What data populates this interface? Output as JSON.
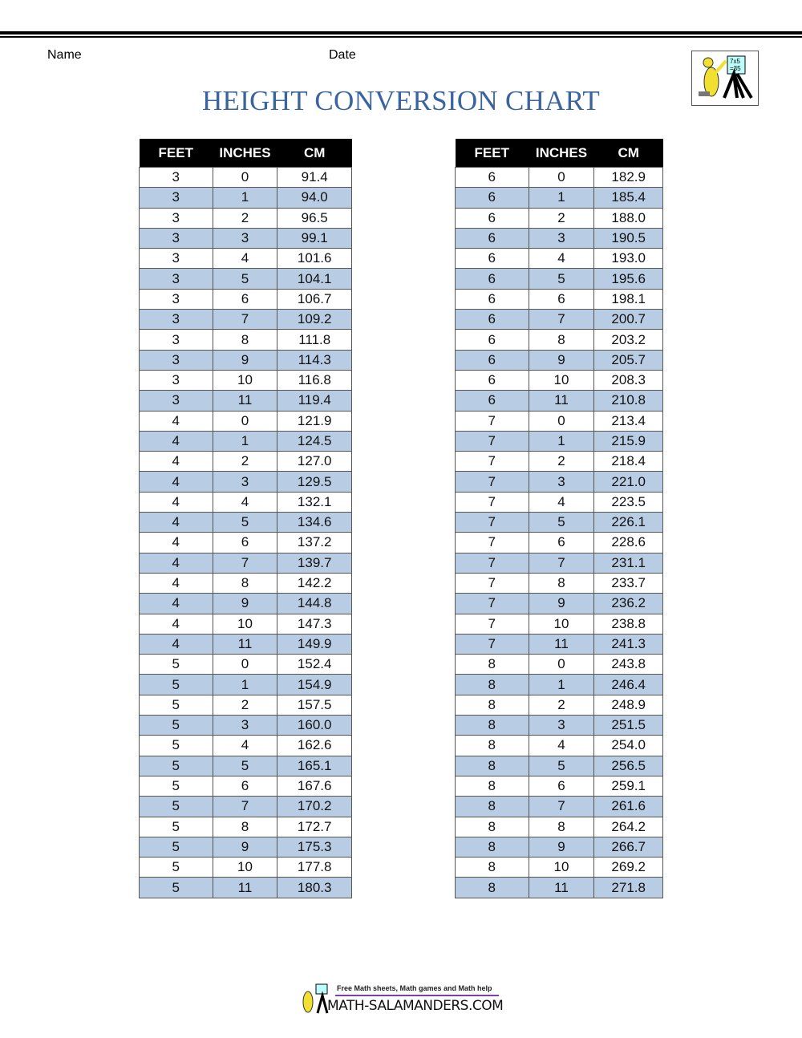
{
  "header": {
    "name_label": "Name",
    "date_label": "Date",
    "title": "HEIGHT CONVERSION CHART"
  },
  "columns": [
    "FEET",
    "INCHES",
    "CM"
  ],
  "tables": [
    {
      "rows": [
        [
          "3",
          "0",
          "91.4"
        ],
        [
          "3",
          "1",
          "94.0"
        ],
        [
          "3",
          "2",
          "96.5"
        ],
        [
          "3",
          "3",
          "99.1"
        ],
        [
          "3",
          "4",
          "101.6"
        ],
        [
          "3",
          "5",
          "104.1"
        ],
        [
          "3",
          "6",
          "106.7"
        ],
        [
          "3",
          "7",
          "109.2"
        ],
        [
          "3",
          "8",
          "111.8"
        ],
        [
          "3",
          "9",
          "114.3"
        ],
        [
          "3",
          "10",
          "116.8"
        ],
        [
          "3",
          "11",
          "119.4"
        ],
        [
          "4",
          "0",
          "121.9"
        ],
        [
          "4",
          "1",
          "124.5"
        ],
        [
          "4",
          "2",
          "127.0"
        ],
        [
          "4",
          "3",
          "129.5"
        ],
        [
          "4",
          "4",
          "132.1"
        ],
        [
          "4",
          "5",
          "134.6"
        ],
        [
          "4",
          "6",
          "137.2"
        ],
        [
          "4",
          "7",
          "139.7"
        ],
        [
          "4",
          "8",
          "142.2"
        ],
        [
          "4",
          "9",
          "144.8"
        ],
        [
          "4",
          "10",
          "147.3"
        ],
        [
          "4",
          "11",
          "149.9"
        ],
        [
          "5",
          "0",
          "152.4"
        ],
        [
          "5",
          "1",
          "154.9"
        ],
        [
          "5",
          "2",
          "157.5"
        ],
        [
          "5",
          "3",
          "160.0"
        ],
        [
          "5",
          "4",
          "162.6"
        ],
        [
          "5",
          "5",
          "165.1"
        ],
        [
          "5",
          "6",
          "167.6"
        ],
        [
          "5",
          "7",
          "170.2"
        ],
        [
          "5",
          "8",
          "172.7"
        ],
        [
          "5",
          "9",
          "175.3"
        ],
        [
          "5",
          "10",
          "177.8"
        ],
        [
          "5",
          "11",
          "180.3"
        ]
      ]
    },
    {
      "rows": [
        [
          "6",
          "0",
          "182.9"
        ],
        [
          "6",
          "1",
          "185.4"
        ],
        [
          "6",
          "2",
          "188.0"
        ],
        [
          "6",
          "3",
          "190.5"
        ],
        [
          "6",
          "4",
          "193.0"
        ],
        [
          "6",
          "5",
          "195.6"
        ],
        [
          "6",
          "6",
          "198.1"
        ],
        [
          "6",
          "7",
          "200.7"
        ],
        [
          "6",
          "8",
          "203.2"
        ],
        [
          "6",
          "9",
          "205.7"
        ],
        [
          "6",
          "10",
          "208.3"
        ],
        [
          "6",
          "11",
          "210.8"
        ],
        [
          "7",
          "0",
          "213.4"
        ],
        [
          "7",
          "1",
          "215.9"
        ],
        [
          "7",
          "2",
          "218.4"
        ],
        [
          "7",
          "3",
          "221.0"
        ],
        [
          "7",
          "4",
          "223.5"
        ],
        [
          "7",
          "5",
          "226.1"
        ],
        [
          "7",
          "6",
          "228.6"
        ],
        [
          "7",
          "7",
          "231.1"
        ],
        [
          "7",
          "8",
          "233.7"
        ],
        [
          "7",
          "9",
          "236.2"
        ],
        [
          "7",
          "10",
          "238.8"
        ],
        [
          "7",
          "11",
          "241.3"
        ],
        [
          "8",
          "0",
          "243.8"
        ],
        [
          "8",
          "1",
          "246.4"
        ],
        [
          "8",
          "2",
          "248.9"
        ],
        [
          "8",
          "3",
          "251.5"
        ],
        [
          "8",
          "4",
          "254.0"
        ],
        [
          "8",
          "5",
          "256.5"
        ],
        [
          "8",
          "6",
          "259.1"
        ],
        [
          "8",
          "7",
          "261.6"
        ],
        [
          "8",
          "8",
          "264.2"
        ],
        [
          "8",
          "9",
          "266.7"
        ],
        [
          "8",
          "10",
          "269.2"
        ],
        [
          "8",
          "11",
          "271.8"
        ]
      ]
    }
  ],
  "footer": {
    "tagline": "Free Math sheets, Math games and Math help",
    "site": "MATH-SALAMANDERS.COM"
  },
  "colors": {
    "title": "#3a64a0",
    "header_bg": "#000000",
    "alt_row": "#b8cce4"
  },
  "icons": {
    "logo": "salamander-teacher-logo"
  }
}
